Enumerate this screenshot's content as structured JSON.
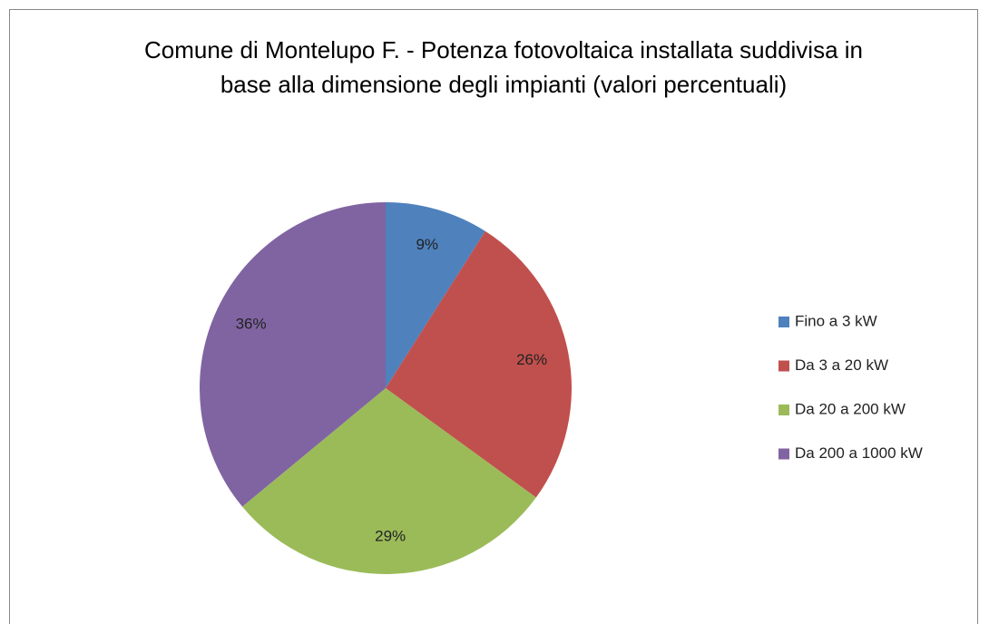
{
  "chart_data": {
    "type": "pie",
    "title": "Comune di Montelupo F. - Potenza fotovoltaica  installata suddivisa in base alla dimensione degli impianti (valori percentuali)",
    "categories": [
      "Fino a 3 kW",
      "Da 3 a 20 kW",
      "Da 20 a 200 kW",
      "Da 200 a 1000 kW"
    ],
    "values": [
      9,
      26,
      29,
      36
    ],
    "value_labels": [
      "9%",
      "26%",
      "29%",
      "36%"
    ],
    "colors": [
      "#4f81bd",
      "#c0504d",
      "#9bbb59",
      "#8064a2"
    ],
    "legend": "right"
  }
}
